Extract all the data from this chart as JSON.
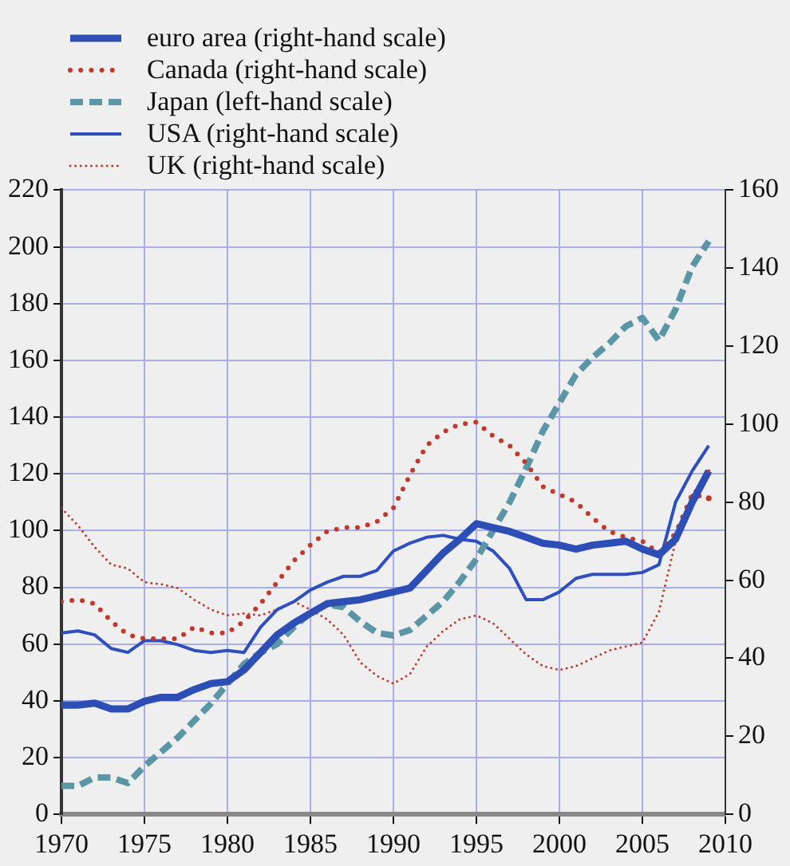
{
  "chart_data": {
    "type": "line",
    "legend": "top left",
    "grid": true,
    "x": [
      1970,
      1971,
      1972,
      1973,
      1974,
      1975,
      1976,
      1977,
      1978,
      1979,
      1980,
      1981,
      1982,
      1983,
      1984,
      1985,
      1986,
      1987,
      1988,
      1989,
      1990,
      1991,
      1992,
      1993,
      1994,
      1995,
      1996,
      1997,
      1998,
      1999,
      2000,
      2001,
      2002,
      2003,
      2004,
      2005,
      2006,
      2007,
      2008,
      2009
    ],
    "xlim": [
      1970,
      2010
    ],
    "xticks": [
      1970,
      1975,
      1980,
      1985,
      1990,
      1995,
      2000,
      2005,
      2010
    ],
    "ylim": [
      0,
      220
    ],
    "yticks": [
      0,
      20,
      40,
      60,
      80,
      100,
      120,
      140,
      160,
      180,
      200,
      220
    ],
    "y2lim": [
      0,
      160
    ],
    "y2ticks": [
      0,
      20,
      40,
      60,
      80,
      100,
      120,
      140,
      160
    ],
    "series": [
      {
        "name": "euro area (right-hand scale)",
        "color": "#2d4fb5",
        "axis": "y2",
        "line_style": "solid",
        "values": [
          28,
          28,
          28.5,
          27,
          27,
          29,
          30,
          30,
          32,
          33.5,
          34,
          37,
          41.5,
          46,
          49,
          51.5,
          54,
          54.5,
          55,
          56,
          57,
          58,
          62.5,
          67,
          70.5,
          74.5,
          73.5,
          72.5,
          71,
          69.5,
          69,
          68,
          69,
          69.5,
          70,
          68,
          66.5,
          70.5,
          80,
          88
        ]
      },
      {
        "name": "Canada (right-hand scale)",
        "color": "#c0392b",
        "axis": "y2",
        "line_style": "dotted",
        "values": [
          54.5,
          55,
          54,
          49.5,
          46,
          45,
          45,
          45,
          48,
          46.5,
          46.5,
          49.5,
          54,
          59.5,
          65,
          69,
          72.5,
          73.5,
          73.5,
          75,
          78.5,
          87,
          94.5,
          98,
          100,
          100.5,
          97,
          94.5,
          90,
          84,
          82,
          80,
          76,
          72.5,
          71,
          70,
          67,
          72,
          82,
          81
        ]
      },
      {
        "name": "Japan (left-hand scale)",
        "color": "#5b96a6",
        "line_style": "dashed",
        "values": [
          10,
          10,
          13,
          13,
          11,
          17,
          22,
          27,
          33,
          39,
          46,
          53,
          57,
          60,
          66,
          71,
          74,
          73,
          68,
          64,
          63,
          65,
          70,
          75,
          82,
          90,
          100,
          110,
          122,
          135,
          145,
          155,
          161,
          166,
          172,
          175,
          167,
          178,
          193,
          202
        ]
      },
      {
        "name": "USA (right-hand scale)",
        "color": "#2f4fbf",
        "axis": "y2",
        "line_style": "solid",
        "values": [
          46.5,
          47,
          46,
          42.5,
          41.5,
          44.5,
          44.5,
          43.5,
          42,
          41.5,
          42,
          41.5,
          48,
          52.5,
          54.5,
          57.5,
          59.5,
          61,
          61,
          62.5,
          67.5,
          69.5,
          71,
          71.5,
          70.5,
          70,
          67.5,
          63,
          55,
          55,
          57,
          60.5,
          61.5,
          61.5,
          61.5,
          62,
          64,
          80,
          88,
          94.5
        ]
      },
      {
        "name": "UK (right-hand scale)",
        "color": "#c0392b",
        "axis": "y2",
        "line_style": "dotted",
        "values": [
          78.5,
          74,
          68.5,
          64,
          63,
          59.5,
          59,
          58,
          55,
          52.5,
          51,
          51.5,
          51,
          52.5,
          54.5,
          52.5,
          50,
          46,
          39,
          35.5,
          33.5,
          36,
          43,
          47,
          50,
          51,
          49,
          45,
          41,
          38,
          37,
          38,
          40,
          42,
          43,
          44,
          52,
          70,
          82,
          88
        ]
      }
    ]
  }
}
